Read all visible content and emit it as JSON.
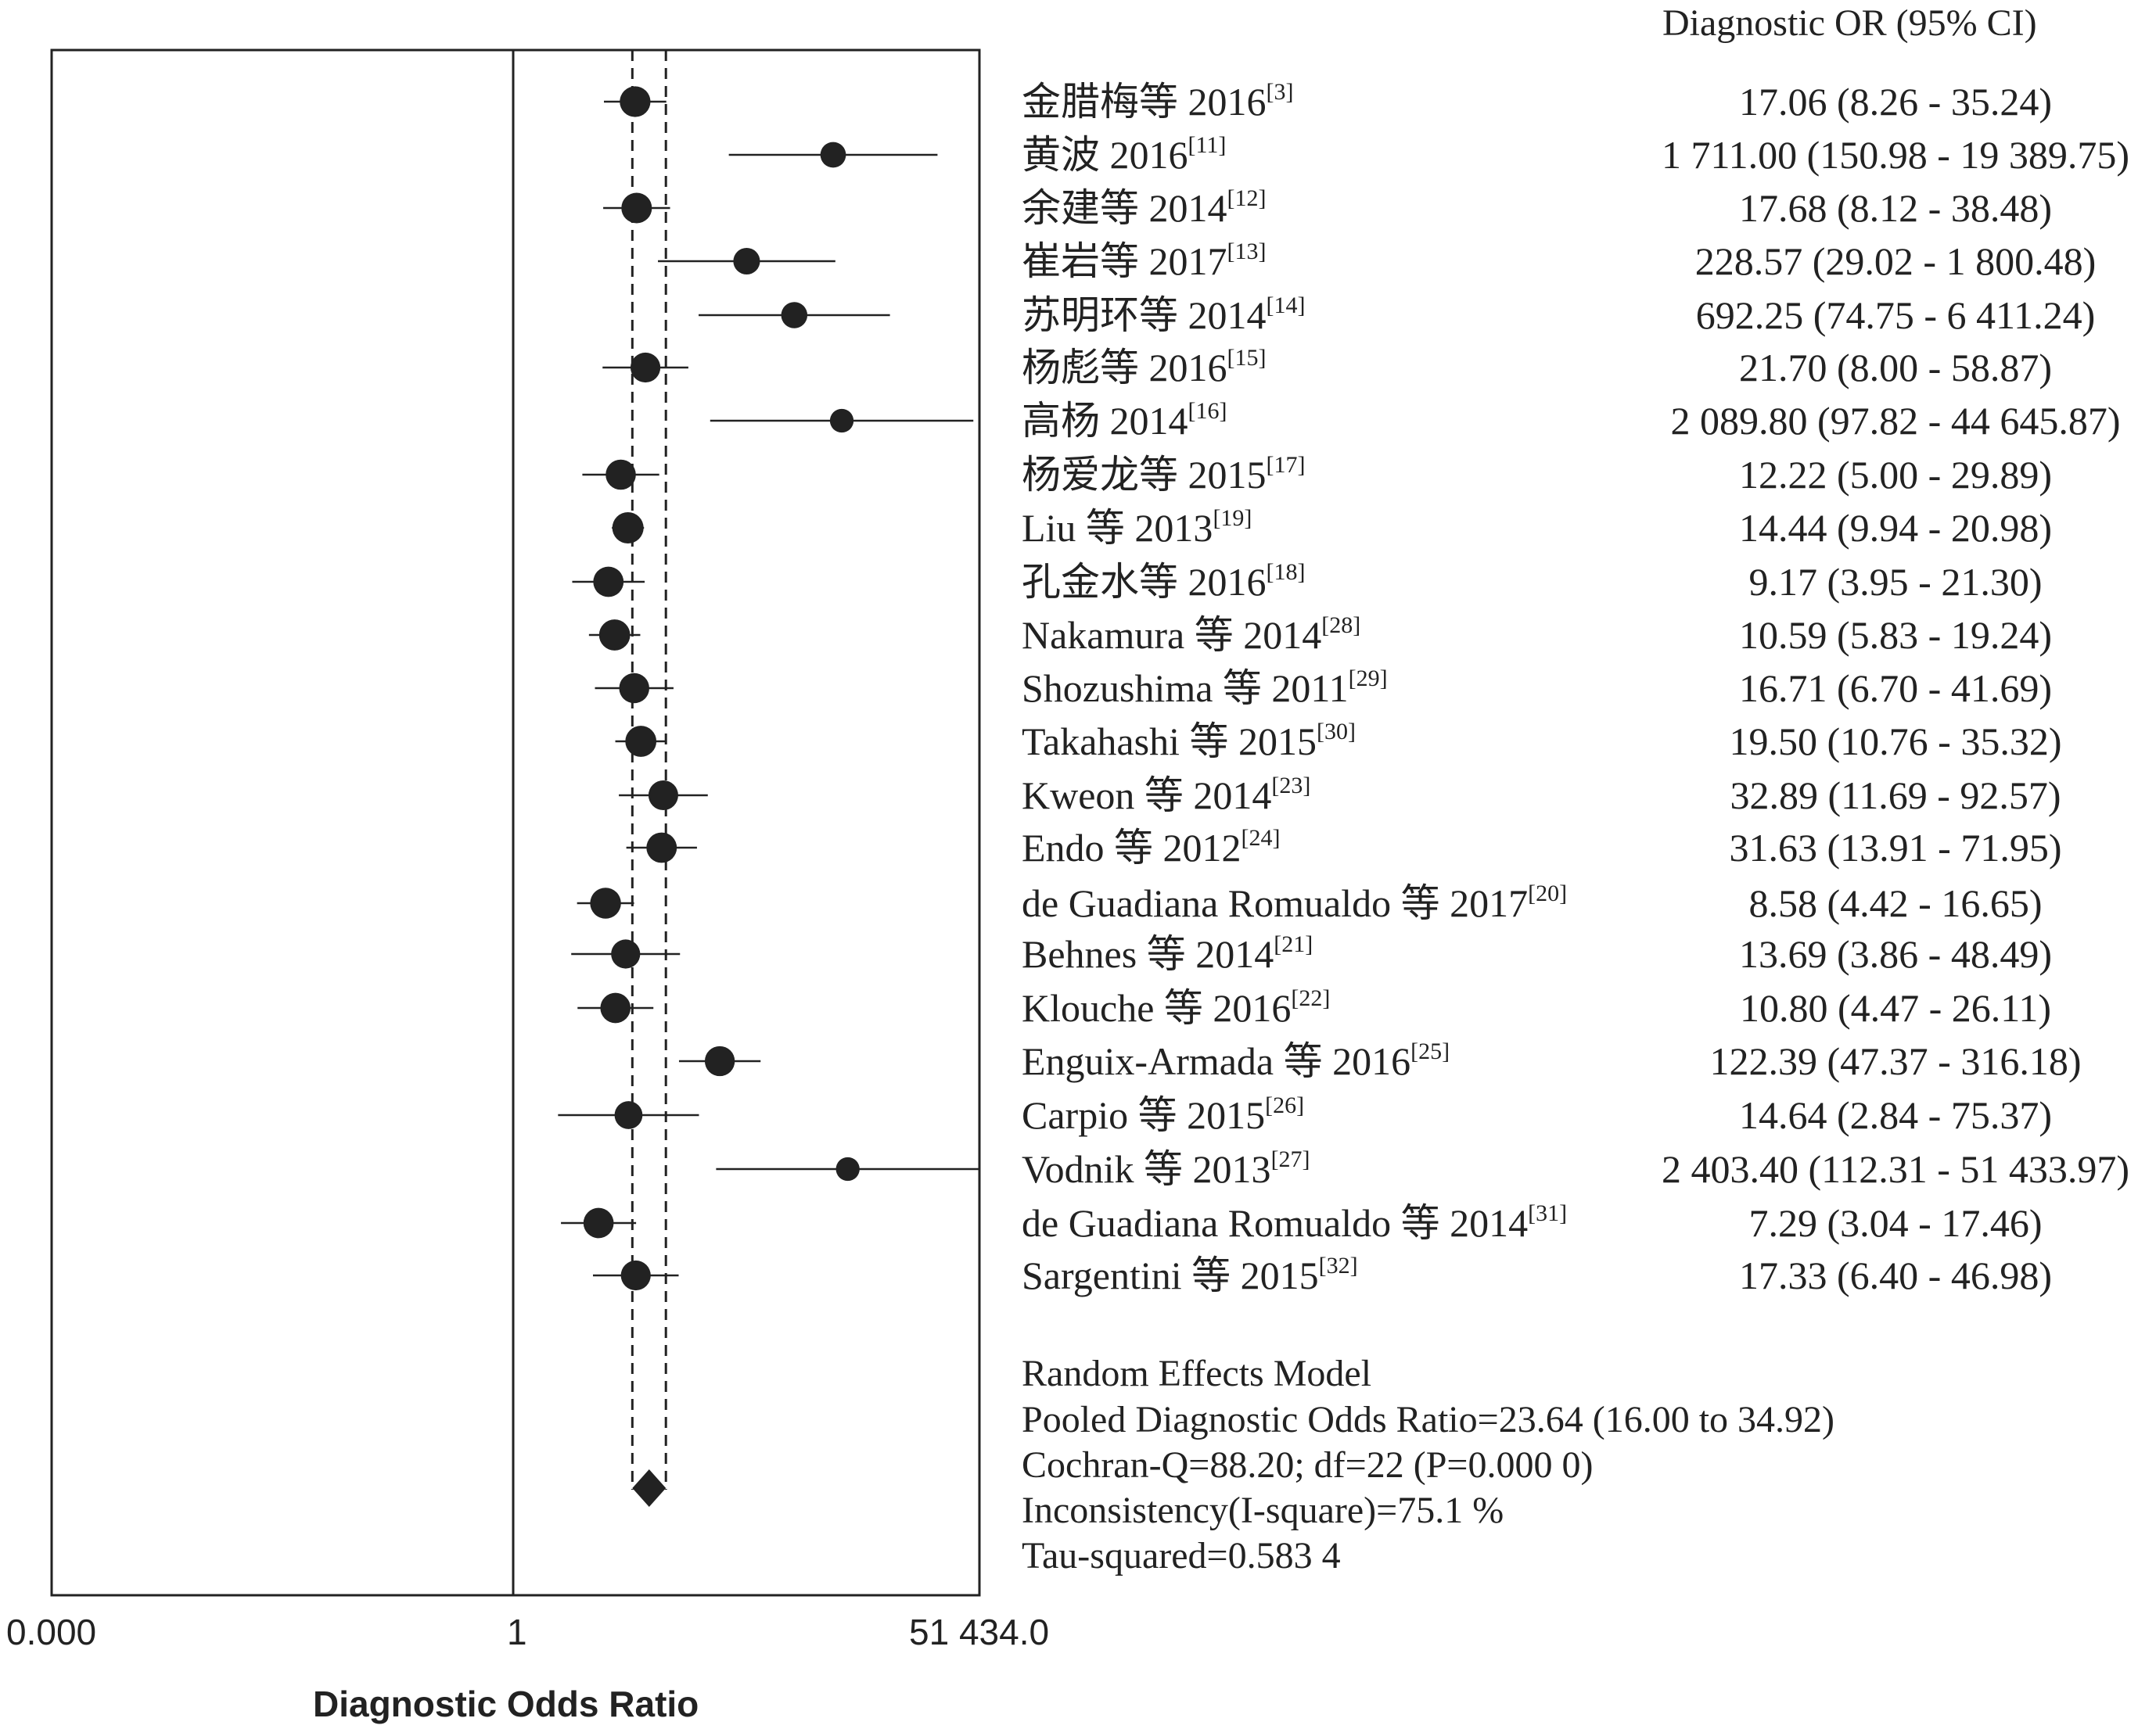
{
  "chart_data": {
    "type": "forest",
    "xlabel": "Diagnostic Odds Ratio",
    "x_scale": "log",
    "xlim": [
      0.0,
      51434.0
    ],
    "x_tick_labels": [
      "0.000",
      "1",
      "51 434.0"
    ],
    "column_header": "Diagnostic OR (95% CI)",
    "studies": [
      {
        "name": "金腊梅等  2016",
        "ref": "[3]",
        "or": 17.06,
        "lower": 8.26,
        "upper": 35.24,
        "ci_text": "17.06 (8.26 - 35.24)"
      },
      {
        "name": "黄波 2016",
        "ref": "[11]",
        "or": 1711.0,
        "lower": 150.98,
        "upper": 19389.75,
        "ci_text": "1 711.00 (150.98 - 19 389.75)"
      },
      {
        "name": "余建等  2014",
        "ref": "[12]",
        "or": 17.68,
        "lower": 8.12,
        "upper": 38.48,
        "ci_text": "17.68 (8.12 - 38.48)"
      },
      {
        "name": "崔岩等  2017",
        "ref": "[13]",
        "or": 228.57,
        "lower": 29.02,
        "upper": 1800.48,
        "ci_text": "228.57 (29.02 - 1 800.48)"
      },
      {
        "name": "苏明环等  2014",
        "ref": "[14]",
        "or": 692.25,
        "lower": 74.75,
        "upper": 6411.24,
        "ci_text": "692.25 (74.75 - 6 411.24)"
      },
      {
        "name": "杨彪等  2016",
        "ref": "[15]",
        "or": 21.7,
        "lower": 8.0,
        "upper": 58.87,
        "ci_text": "21.70 (8.00 - 58.87)"
      },
      {
        "name": "高杨 2014",
        "ref": "[16]",
        "or": 2089.8,
        "lower": 97.82,
        "upper": 44645.87,
        "ci_text": "2 089.80 (97.82 - 44 645.87)"
      },
      {
        "name": "杨爱龙等 2015",
        "ref": "[17]",
        "or": 12.22,
        "lower": 5.0,
        "upper": 29.89,
        "ci_text": "12.22 (5.00 - 29.89)"
      },
      {
        "name": "Liu 等 2013",
        "ref": "[19]",
        "or": 14.44,
        "lower": 9.94,
        "upper": 20.98,
        "ci_text": "14.44 (9.94 - 20.98)"
      },
      {
        "name": "孔金水等 2016",
        "ref": "[18]",
        "or": 9.17,
        "lower": 3.95,
        "upper": 21.3,
        "ci_text": "9.17 (3.95 - 21.30)"
      },
      {
        "name": "Nakamura 等 2014",
        "ref": "[28]",
        "or": 10.59,
        "lower": 5.83,
        "upper": 19.24,
        "ci_text": "10.59 (5.83 - 19.24)"
      },
      {
        "name": "Shozushima 等 2011",
        "ref": "[29]",
        "or": 16.71,
        "lower": 6.7,
        "upper": 41.69,
        "ci_text": "16.71 (6.70 - 41.69)"
      },
      {
        "name": "Takahashi  等 2015",
        "ref": "[30]",
        "or": 19.5,
        "lower": 10.76,
        "upper": 35.32,
        "ci_text": "19.50 (10.76 - 35.32)"
      },
      {
        "name": "Kweon 等 2014",
        "ref": "[23]",
        "or": 32.89,
        "lower": 11.69,
        "upper": 92.57,
        "ci_text": "32.89 (11.69 - 92.57)"
      },
      {
        "name": "Endo 等 2012",
        "ref": "[24]",
        "or": 31.63,
        "lower": 13.91,
        "upper": 71.95,
        "ci_text": "31.63 (13.91 - 71.95)"
      },
      {
        "name": "de Guadiana Romualdo 等 2017",
        "ref": "[20]",
        "or": 8.58,
        "lower": 4.42,
        "upper": 16.65,
        "ci_text": "8.58 (4.42 - 16.65)"
      },
      {
        "name": "Behnes 等 2014",
        "ref": "[21]",
        "or": 13.69,
        "lower": 3.86,
        "upper": 48.49,
        "ci_text": "13.69 (3.86 - 48.49)"
      },
      {
        "name": "Klouche 等 2016",
        "ref": "[22]",
        "or": 10.8,
        "lower": 4.47,
        "upper": 26.11,
        "ci_text": "10.80 (4.47 - 26.11)"
      },
      {
        "name": "Enguix-Armada 等 2016",
        "ref": "[25]",
        "or": 122.39,
        "lower": 47.37,
        "upper": 316.18,
        "ci_text": "122.39 (47.37 - 316.18)"
      },
      {
        "name": "Carpio 等 2015",
        "ref": "[26]",
        "or": 14.64,
        "lower": 2.84,
        "upper": 75.37,
        "ci_text": "14.64 (2.84 - 75.37)"
      },
      {
        "name": "Vodnik 等 2013",
        "ref": "[27]",
        "or": 2403.4,
        "lower": 112.31,
        "upper": 51433.97,
        "ci_text": "2 403.40 (112.31 - 51 433.97)"
      },
      {
        "name": "de Guadiana Romualdo 等 2014",
        "ref": "[31]",
        "or": 7.29,
        "lower": 3.04,
        "upper": 17.46,
        "ci_text": "7.29 (3.04 - 17.46)"
      },
      {
        "name": "Sargentini 等 2015",
        "ref": "[32]",
        "or": 17.33,
        "lower": 6.4,
        "upper": 46.98,
        "ci_text": "17.33 (6.40 - 46.98)"
      }
    ],
    "pooled": {
      "or": 23.64,
      "lower": 16.0,
      "upper": 34.92
    },
    "summary_lines": [
      "Random Effects Model",
      "Pooled Diagnostic Odds Ratio=23.64 (16.00 to 34.92)",
      "Cochran-Q=88.20; df=22 (P=0.000 0)",
      "Inconsistency(I-square)=75.1 %",
      "Tau-squared=0.583 4"
    ]
  }
}
